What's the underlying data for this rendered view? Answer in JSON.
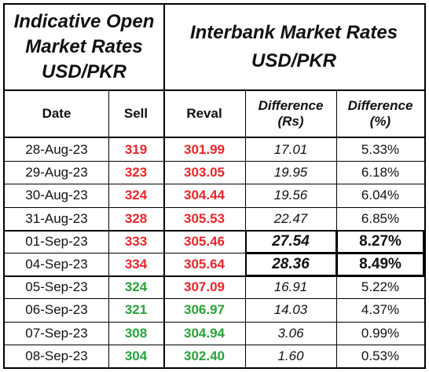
{
  "header": {
    "left_title_lines": [
      "Indicative Open",
      "Market Rates",
      "USD/PKR"
    ],
    "right_title_lines": [
      "Interbank Market Rates",
      "USD/PKR"
    ]
  },
  "columns": [
    {
      "lines": [
        "Date"
      ]
    },
    {
      "lines": [
        "Sell"
      ]
    },
    {
      "lines": [
        "Reval"
      ]
    },
    {
      "lines": [
        "Difference",
        "(Rs)"
      ]
    },
    {
      "lines": [
        "Difference",
        "(%)"
      ]
    }
  ],
  "colors": {
    "red": "#e8262c",
    "green": "#27a33a",
    "black": "#111111"
  },
  "rows": [
    {
      "date": "28-Aug-23",
      "sell": "319",
      "sell_color": "red",
      "reval": "301.99",
      "reval_color": "red",
      "diff_rs": "17.01",
      "diff_pct": "5.33%",
      "highlight": false
    },
    {
      "date": "29-Aug-23",
      "sell": "323",
      "sell_color": "red",
      "reval": "303.05",
      "reval_color": "red",
      "diff_rs": "19.95",
      "diff_pct": "6.18%",
      "highlight": false
    },
    {
      "date": "30-Aug-23",
      "sell": "324",
      "sell_color": "red",
      "reval": "304.44",
      "reval_color": "red",
      "diff_rs": "19.56",
      "diff_pct": "6.04%",
      "highlight": false
    },
    {
      "date": "31-Aug-23",
      "sell": "328",
      "sell_color": "red",
      "reval": "305.53",
      "reval_color": "red",
      "diff_rs": "22.47",
      "diff_pct": "6.85%",
      "highlight": false
    },
    {
      "date": "01-Sep-23",
      "sell": "333",
      "sell_color": "red",
      "reval": "305.46",
      "reval_color": "red",
      "diff_rs": "27.54",
      "diff_pct": "8.27%",
      "highlight": true
    },
    {
      "date": "04-Sep-23",
      "sell": "334",
      "sell_color": "red",
      "reval": "305.64",
      "reval_color": "red",
      "diff_rs": "28.36",
      "diff_pct": "8.49%",
      "highlight": true
    },
    {
      "date": "05-Sep-23",
      "sell": "324",
      "sell_color": "green",
      "reval": "307.09",
      "reval_color": "red",
      "diff_rs": "16.91",
      "diff_pct": "5.22%",
      "highlight": false
    },
    {
      "date": "06-Sep-23",
      "sell": "321",
      "sell_color": "green",
      "reval": "306.97",
      "reval_color": "green",
      "diff_rs": "14.03",
      "diff_pct": "4.37%",
      "highlight": false
    },
    {
      "date": "07-Sep-23",
      "sell": "308",
      "sell_color": "green",
      "reval": "304.94",
      "reval_color": "green",
      "diff_rs": "3.06",
      "diff_pct": "0.99%",
      "highlight": false
    },
    {
      "date": "08-Sep-23",
      "sell": "304",
      "sell_color": "green",
      "reval": "302.40",
      "reval_color": "green",
      "diff_rs": "1.60",
      "diff_pct": "0.53%",
      "highlight": false
    }
  ]
}
